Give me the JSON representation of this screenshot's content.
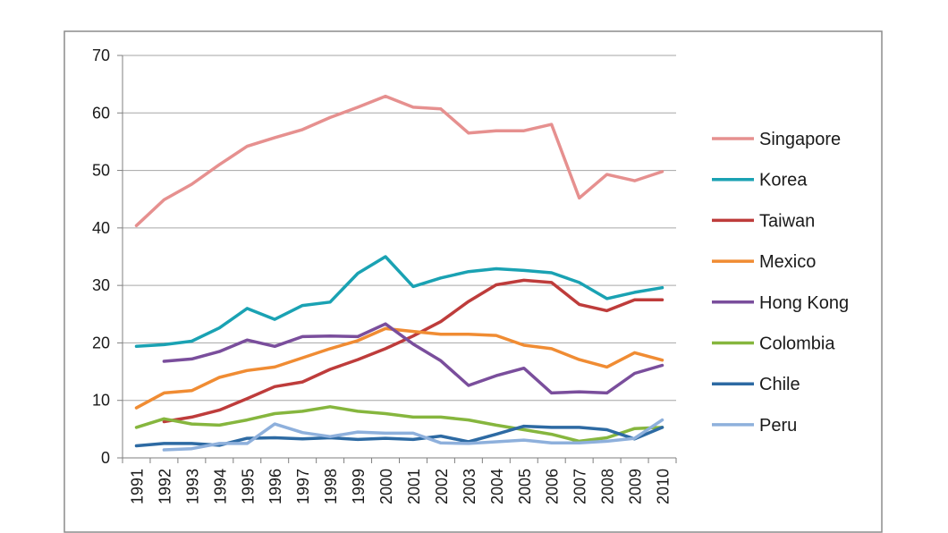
{
  "chart_data": {
    "type": "line",
    "title": "",
    "xlabel": "",
    "ylabel": "",
    "ylim": [
      0,
      70
    ],
    "yticks": [
      0,
      10,
      20,
      30,
      40,
      50,
      60,
      70
    ],
    "grid": true,
    "legend_position": "right",
    "categories": [
      "1991",
      "1992",
      "1993",
      "1994",
      "1995",
      "1996",
      "1997",
      "1998",
      "1999",
      "2000",
      "2001",
      "2002",
      "2003",
      "2004",
      "2005",
      "2006",
      "2007",
      "2008",
      "2009",
      "2010"
    ],
    "series": [
      {
        "name": "Singapore",
        "color": "#e6908f",
        "values": [
          40.4,
          44.9,
          47.6,
          51.0,
          54.2,
          55.7,
          57.1,
          59.2,
          61.0,
          62.9,
          61.0,
          60.7,
          56.5,
          56.9,
          56.9,
          58.0,
          45.2,
          49.3,
          48.2,
          49.8
        ]
      },
      {
        "name": "Korea",
        "color": "#1aa2b3",
        "values": [
          19.4,
          19.7,
          20.3,
          22.6,
          26.0,
          24.1,
          26.5,
          27.1,
          32.1,
          35.0,
          29.8,
          31.3,
          32.4,
          32.9,
          32.6,
          32.2,
          30.5,
          27.7,
          28.8,
          29.6
        ]
      },
      {
        "name": "Taiwan",
        "color": "#be3c3b",
        "values": [
          null,
          6.3,
          7.1,
          8.3,
          10.3,
          12.4,
          13.2,
          15.4,
          17.1,
          19.0,
          21.2,
          23.7,
          27.2,
          30.1,
          30.9,
          30.5,
          26.7,
          25.6,
          27.5,
          27.5
        ]
      },
      {
        "name": "Mexico",
        "color": "#f08c33",
        "values": [
          8.7,
          11.3,
          11.7,
          14.0,
          15.2,
          15.8,
          17.4,
          19.0,
          20.4,
          22.5,
          22.0,
          21.5,
          21.5,
          21.3,
          19.6,
          19.0,
          17.1,
          15.8,
          18.3,
          17.0
        ]
      },
      {
        "name": "Hong Kong",
        "color": "#7a4e9c",
        "values": [
          null,
          16.8,
          17.2,
          18.5,
          20.5,
          19.4,
          21.1,
          21.2,
          21.1,
          23.3,
          19.8,
          16.9,
          12.6,
          14.3,
          15.6,
          11.3,
          11.5,
          11.3,
          14.7,
          16.1
        ]
      },
      {
        "name": "Colombia",
        "color": "#86b63e",
        "values": [
          5.3,
          6.8,
          5.9,
          5.7,
          6.6,
          7.7,
          8.1,
          8.9,
          8.1,
          7.7,
          7.1,
          7.1,
          6.6,
          5.7,
          4.9,
          4.1,
          2.9,
          3.5,
          5.1,
          5.3
        ]
      },
      {
        "name": "Chile",
        "color": "#2d6aa3",
        "values": [
          2.1,
          2.5,
          2.5,
          2.2,
          3.4,
          3.5,
          3.3,
          3.5,
          3.2,
          3.4,
          3.2,
          3.8,
          2.8,
          4.1,
          5.5,
          5.3,
          5.3,
          4.9,
          3.3,
          5.3
        ]
      },
      {
        "name": "Peru",
        "color": "#8eb0dc",
        "values": [
          null,
          1.4,
          1.6,
          2.5,
          2.5,
          5.9,
          4.4,
          3.7,
          4.5,
          4.3,
          4.3,
          2.6,
          2.5,
          2.8,
          3.1,
          2.6,
          2.6,
          2.9,
          3.4,
          6.6
        ]
      }
    ]
  }
}
